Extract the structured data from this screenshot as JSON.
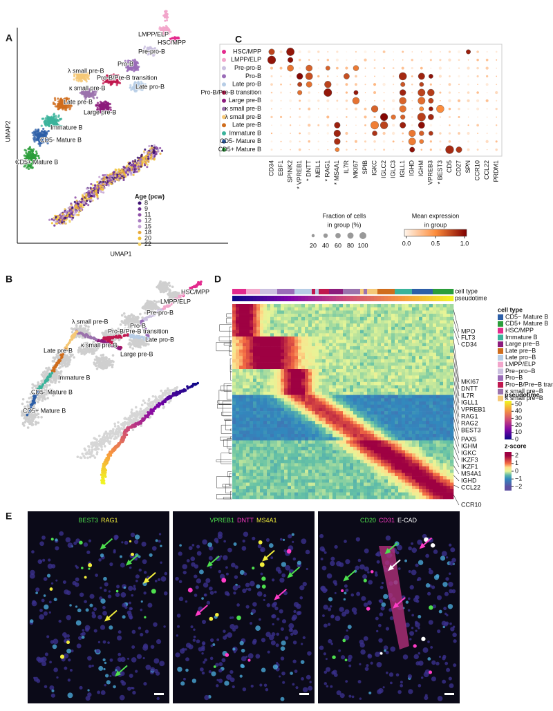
{
  "panel_a": {
    "label": "A",
    "x_axis": "UMAP1",
    "y_axis": "UMAP2",
    "clusters": [
      "LMPP/ELP",
      "HSC/MPP",
      "Pre-pro-B",
      "Pro-B",
      "λ small pre-B",
      "Pro-B/Pre-B transition",
      "κ small pre-B",
      "Late pro-B",
      "Late pre-B",
      "Large pre-B",
      "Immature B",
      "CD5- Mature B",
      "CD5+ Mature B"
    ],
    "age_title": "Age (pcw)",
    "ages": [
      8,
      9,
      11,
      12,
      15,
      18,
      20,
      22
    ]
  },
  "panel_b": {
    "label": "B",
    "clusters": [
      "HSC/MPP",
      "LMPP/ELP",
      "Pre-pro-B",
      "Pro-B",
      "Late pro-B",
      "λ small pre-B",
      "Pro-B/Pre-B transition",
      "κ small pre-B",
      "Large pre-B",
      "Late pre-B",
      "Immature B",
      "CD5- Mature B",
      "CD5+ Mature B"
    ]
  },
  "panel_c": {
    "label": "C",
    "rows": [
      "HSC/MPP",
      "LMPP/ELP",
      "Pre-pro-B",
      "Pro-B",
      "Late pro-B",
      "Pro-B/Pre-B transition",
      "Large pre-B",
      "κ small pre-B",
      "λ small pre-B",
      "Late pre-B",
      "Immature B",
      "CD5- Mature B",
      "CD5+ Mature B"
    ],
    "genes": [
      "CD34",
      "EBF1",
      "SPINK2",
      "* VPREB1",
      "* DNTT",
      "NEIL1",
      "* RAG1",
      "* MS4A1",
      "IL7R",
      "MKI67",
      "SPIB",
      "IGKC",
      "IGLC2",
      "IGLC3",
      "IGLL1",
      "IGHD",
      "IGHM",
      "VPREB3",
      "* BEST3",
      "CD5",
      "CD27",
      "SPN",
      "CCR10",
      "CCL22",
      "PRDM1"
    ],
    "size_title": [
      "Fraction of cells",
      "in group (%)"
    ],
    "size_ticks": [
      20,
      40,
      60,
      80,
      100
    ],
    "color_title": [
      "Mean expression",
      "in group"
    ],
    "color_ticks": [
      {
        "value": 0,
        "label": "0.0"
      },
      {
        "value": 0.5,
        "label": "0.5"
      },
      {
        "value": 1,
        "label": "1.0"
      }
    ]
  },
  "panel_d": {
    "label": "D",
    "annotation_rows": [
      "cell type",
      "pseudotime"
    ],
    "cell_type_title": "cell type",
    "cell_types": [
      {
        "name": "CD5− Mature B",
        "color": "#2d5fa8"
      },
      {
        "name": "CD5+ Mature B",
        "color": "#2a9d3a"
      },
      {
        "name": "HSC/MPP",
        "color": "#e32a8d"
      },
      {
        "name": "Immature B",
        "color": "#3bb39b"
      },
      {
        "name": "Large pre−B",
        "color": "#8c1b7c"
      },
      {
        "name": "Late pre−B",
        "color": "#cf6d1d"
      },
      {
        "name": "Late pro−B",
        "color": "#b7cde6"
      },
      {
        "name": "LMPP/ELP",
        "color": "#f2a6cb"
      },
      {
        "name": "Pre−pro−B",
        "color": "#cbc0e0"
      },
      {
        "name": "Pro−B",
        "color": "#9a6cb8"
      },
      {
        "name": "Pro−B/Pre−B transition",
        "color": "#c0174e"
      },
      {
        "name": "κ small pre−B",
        "color": "#9b72ad"
      },
      {
        "name": "λ small pre−B",
        "color": "#f5c877"
      }
    ],
    "genes": [
      "MPO",
      "FLT3",
      "CD34",
      "MKI67",
      "DNTT",
      "IL7R",
      "IGLL1",
      "VPREB1",
      "RAG1",
      "RAG2",
      "BEST3",
      "PAX5",
      "IGHM",
      "IGKC",
      "IKZF3",
      "IKZF1",
      "MS4A1",
      "IGHD",
      "CCL22",
      "CCR10"
    ],
    "pseudotime_title": "pseudotime",
    "pseudotime_lim": [
      0,
      55
    ],
    "pseudotime_ticks": [
      50,
      40,
      30,
      20,
      10,
      0
    ],
    "zscore_title": "z-score",
    "zscore_lim": [
      -2.5,
      2.5
    ],
    "zscore_ticks": [
      2,
      1,
      0,
      {
        "value": -1,
        "label": "−1"
      },
      {
        "value": -2,
        "label": "−2"
      }
    ]
  },
  "panel_e": {
    "label": "E",
    "images": [
      {
        "stains": [
          {
            "text": "BEST3",
            "color": "#4ee04e"
          },
          {
            "text": "RAG1",
            "color": "#f2ee3c"
          }
        ]
      },
      {
        "stains": [
          {
            "text": "VPREB1",
            "color": "#4ee04e"
          },
          {
            "text": "DNTT",
            "color": "#ff3cc8"
          },
          {
            "text": "MS4A1",
            "color": "#f2ee3c"
          }
        ]
      },
      {
        "stains": [
          {
            "text": "CD20",
            "color": "#4ee04e"
          },
          {
            "text": "CD31",
            "color": "#ff3cc8"
          },
          {
            "text": "E-CAD",
            "color": "#ffffff"
          }
        ]
      }
    ]
  }
}
